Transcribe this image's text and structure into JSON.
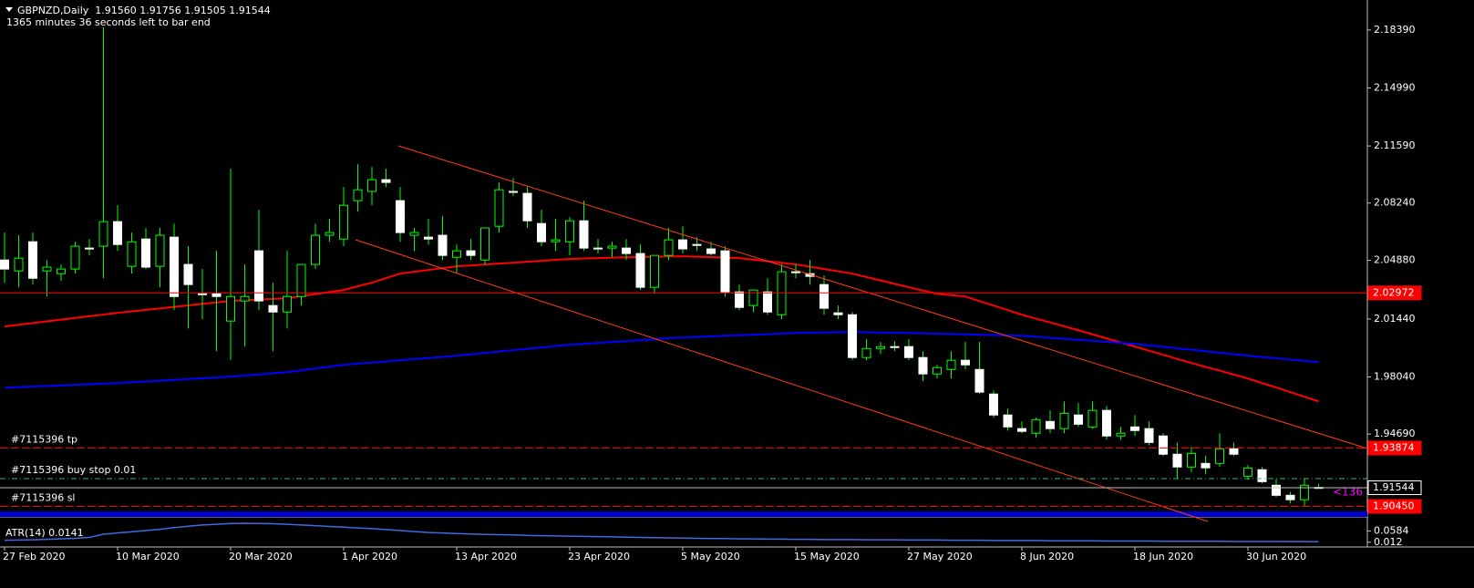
{
  "chart_data": [
    {
      "type": "candlestick",
      "title": "GBPNZD,Daily  1.91560 1.91756 1.91505 1.91544",
      "subtitle": "1365 minutes 36 seconds left to bar end",
      "countdown_tag": "<136",
      "categories": [
        "27 Feb 2020",
        null,
        null,
        null,
        null,
        null,
        null,
        null,
        "10 Mar 2020",
        null,
        null,
        null,
        null,
        null,
        null,
        null,
        "20 Mar 2020",
        null,
        null,
        null,
        null,
        null,
        null,
        null,
        "1 Apr 2020",
        null,
        null,
        null,
        null,
        null,
        null,
        null,
        "13 Apr 2020",
        null,
        null,
        null,
        null,
        null,
        null,
        null,
        "23 Apr 2020",
        null,
        null,
        null,
        null,
        null,
        null,
        null,
        "5 May 2020",
        null,
        null,
        null,
        null,
        null,
        null,
        null,
        "15 May 2020",
        null,
        null,
        null,
        null,
        null,
        null,
        null,
        "27 May 2020",
        null,
        null,
        null,
        null,
        null,
        null,
        null,
        "8 Jun 2020",
        null,
        null,
        null,
        null,
        null,
        null,
        null,
        "18 Jun 2020",
        null,
        null,
        null,
        null,
        null,
        null,
        null,
        "30 Jun 2020",
        null,
        null,
        null,
        null,
        null
      ],
      "open": [
        2.049,
        2.0426,
        2.0597,
        2.0426,
        2.041,
        2.0437,
        2.056,
        2.0571,
        2.0715,
        2.0453,
        2.0613,
        2.0453,
        2.0624,
        2.0464,
        2.0292,
        2.0292,
        2.0132,
        2.025,
        2.0544,
        2.0223,
        2.0185,
        2.0276,
        2.0464,
        2.0635,
        2.0613,
        2.0838,
        2.0892,
        2.0961,
        2.0838,
        2.0635,
        2.0624,
        2.0635,
        2.0506,
        2.0544,
        2.049,
        2.0688,
        2.0892,
        2.0881,
        2.0704,
        2.0597,
        2.0597,
        2.072,
        2.056,
        2.056,
        2.056,
        2.0528,
        2.033,
        2.0517,
        2.0608,
        2.0581,
        2.0555,
        2.0544,
        2.0303,
        2.0223,
        2.0303,
        2.0169,
        2.0421,
        2.041,
        2.0346,
        2.018,
        2.0169,
        1.9918,
        1.9971,
        1.9982,
        1.9982,
        1.9918,
        1.9822,
        1.9848,
        1.9902,
        1.9848,
        1.9704,
        1.9581,
        1.9501,
        1.9474,
        1.9543,
        1.9501,
        1.9581,
        1.9511,
        1.9608,
        1.9458,
        1.9511,
        1.9501,
        1.9458,
        1.9351,
        1.9276,
        1.9297,
        1.9297,
        1.9383,
        1.9222,
        1.926,
        1.9169,
        1.911,
        1.9084,
        1.9156
      ],
      "high": [
        2.0651,
        2.0635,
        2.0651,
        2.049,
        2.0464,
        2.0597,
        2.0613,
        2.1855,
        2.0811,
        2.0651,
        2.0678,
        2.0678,
        2.0704,
        2.0571,
        2.0437,
        2.0544,
        2.1025,
        2.0464,
        2.0785,
        2.0357,
        2.0544,
        2.0464,
        2.0704,
        2.0731,
        2.0918,
        2.1052,
        2.1036,
        2.1025,
        2.0918,
        2.0678,
        2.0731,
        2.0747,
        2.0581,
        2.0613,
        2.0678,
        2.0945,
        2.0972,
        2.0918,
        2.0785,
        2.0731,
        2.0742,
        2.0838,
        2.0613,
        2.0597,
        2.0613,
        2.0581,
        2.0517,
        2.0678,
        2.0688,
        2.0624,
        2.0597,
        2.0571,
        2.0346,
        2.0314,
        2.0383,
        2.0464,
        2.0464,
        2.049,
        2.0399,
        2.0223,
        2.0185,
        2.0025,
        2.0009,
        2.0014,
        2.0025,
        1.9955,
        1.9875,
        1.9955,
        2.0009,
        2.0009,
        1.9725,
        1.9618,
        1.9543,
        1.9565,
        1.9608,
        1.9661,
        1.965,
        1.9661,
        1.9634,
        1.9511,
        1.9581,
        1.9543,
        1.9474,
        1.942,
        1.9394,
        1.934,
        1.9474,
        1.942,
        1.9287,
        1.9276,
        1.9206,
        1.913,
        1.9206,
        1.91756
      ],
      "low": [
        2.0357,
        2.033,
        2.0346,
        2.0276,
        2.0367,
        2.041,
        2.0517,
        2.0383,
        2.0544,
        2.041,
        2.0437,
        2.033,
        2.0196,
        2.0089,
        2.0143,
        1.9955,
        1.9902,
        1.9982,
        2.0196,
        1.9955,
        2.0089,
        2.0223,
        2.0437,
        2.0597,
        2.0571,
        2.0774,
        2.0811,
        2.0918,
        2.0597,
        2.0544,
        2.0581,
        2.049,
        2.041,
        2.049,
        2.0464,
        2.0651,
        2.0865,
        2.0678,
        2.0571,
        2.0544,
        2.0517,
        2.0544,
        2.0528,
        2.0506,
        2.049,
        2.0314,
        2.0292,
        2.049,
        2.0528,
        2.0544,
        2.0517,
        2.0276,
        2.0196,
        2.0185,
        2.0169,
        2.0143,
        2.0383,
        2.0346,
        2.0169,
        2.0143,
        1.9902,
        1.9902,
        1.9939,
        1.9955,
        1.9902,
        1.9779,
        1.9795,
        1.9795,
        1.9848,
        1.9704,
        1.9565,
        1.949,
        1.9474,
        1.9447,
        1.9474,
        1.9474,
        1.9511,
        1.9501,
        1.9436,
        1.9436,
        1.9458,
        1.9404,
        1.934,
        1.9206,
        1.9244,
        1.9233,
        1.9276,
        1.934,
        1.92,
        1.918,
        1.91,
        1.9062,
        1.9046,
        1.91505
      ],
      "close": [
        2.0437,
        2.0501,
        2.0383,
        2.0448,
        2.0437,
        2.0571,
        2.0555,
        2.0715,
        2.0581,
        2.0597,
        2.0448,
        2.0635,
        2.0276,
        2.0346,
        2.0287,
        2.0276,
        2.0276,
        2.0276,
        2.025,
        2.0185,
        2.0276,
        2.0464,
        2.0635,
        2.0651,
        2.0811,
        2.0902,
        2.0961,
        2.0945,
        2.0651,
        2.0651,
        2.0613,
        2.0517,
        2.0544,
        2.0517,
        2.0678,
        2.0902,
        2.0887,
        2.072,
        2.0597,
        2.0608,
        2.072,
        2.056,
        2.0555,
        2.0571,
        2.0528,
        2.033,
        2.0517,
        2.0608,
        2.0555,
        2.0576,
        2.0528,
        2.0303,
        2.0212,
        2.0314,
        2.0185,
        2.0421,
        2.0416,
        2.0394,
        2.0207,
        2.0169,
        1.9918,
        1.9971,
        1.9982,
        1.9977,
        1.9918,
        1.9822,
        1.9859,
        1.9902,
        1.9875,
        1.9715,
        1.9581,
        1.9511,
        1.9485,
        1.9554,
        1.9501,
        1.9591,
        1.9527,
        1.9608,
        1.9458,
        1.9474,
        1.949,
        1.942,
        1.9351,
        1.9276,
        1.9356,
        1.9271,
        1.9383,
        1.9351,
        1.927,
        1.919,
        1.911,
        1.9084,
        1.9169,
        1.91544
      ],
      "up_color": "#000000",
      "down_color": "#ffffff",
      "wick_color": "#00ff00",
      "series": [
        {
          "color": "#ff0000",
          "values": [
            2.01,
            2.011,
            2.012,
            2.013,
            2.014,
            2.015,
            2.016,
            2.017,
            2.018,
            2.0189,
            2.0198,
            2.0206,
            2.0215,
            2.0224,
            2.0233,
            2.0241,
            2.025,
            2.0254,
            2.0258,
            2.0262,
            2.0266,
            2.0278,
            2.029,
            2.0302,
            2.0314,
            2.0336,
            2.0357,
            2.0384,
            2.041,
            2.0421,
            2.0432,
            2.0442,
            2.0453,
            2.0458,
            2.0464,
            2.0469,
            2.0474,
            2.048,
            2.0485,
            2.0491,
            2.0496,
            2.0499,
            2.0501,
            2.0504,
            2.0506,
            2.0508,
            2.0509,
            2.0511,
            2.0512,
            2.0509,
            2.0507,
            2.0504,
            2.0501,
            2.0492,
            2.0483,
            2.0473,
            2.0464,
            2.0451,
            2.0437,
            2.0424,
            2.041,
            2.039,
            2.037,
            2.035,
            2.033,
            2.0311,
            2.0292,
            2.0284,
            2.0276,
            2.0249,
            2.0223,
            2.0196,
            2.0169,
            2.0146,
            2.0124,
            2.0101,
            2.0078,
            2.0054,
            2.003,
            2.0006,
            1.9982,
            1.9958,
            1.9934,
            1.991,
            1.9886,
            1.9863,
            1.9841,
            1.9818,
            1.9795,
            1.9768,
            1.9742,
            1.9715,
            1.9688,
            1.9661
          ]
        },
        {
          "color": "#0000ff",
          "values": [
            1.9741,
            1.9744,
            1.9748,
            1.9751,
            1.9754,
            1.9758,
            1.9761,
            1.9765,
            1.9768,
            1.9773,
            1.9777,
            1.9782,
            1.9787,
            1.9792,
            1.9796,
            1.9801,
            1.9806,
            1.9813,
            1.9819,
            1.9826,
            1.9832,
            1.9843,
            1.9854,
            1.9864,
            1.9875,
            1.9882,
            1.9888,
            1.9895,
            1.9902,
            1.9909,
            1.9915,
            1.9922,
            1.9929,
            1.9937,
            1.9945,
            1.9953,
            1.9961,
            1.9969,
            1.9977,
            1.9985,
            1.9993,
            1.9998,
            2.0004,
            2.0009,
            2.0014,
            2.002,
            2.0025,
            2.0031,
            2.0036,
            2.0039,
            2.0042,
            2.0046,
            2.0049,
            2.0052,
            2.0055,
            2.0059,
            2.0062,
            2.0064,
            2.0065,
            2.0067,
            2.0068,
            2.0066,
            2.0065,
            2.0063,
            2.0062,
            2.006,
            2.0058,
            2.0056,
            2.0054,
            2.0052,
            2.005,
            2.0048,
            2.0046,
            2.004,
            2.0034,
            2.0028,
            2.0022,
            2.0016,
            2.001,
            2.0004,
            1.9998,
            1.9989,
            1.9981,
            1.9972,
            1.9964,
            1.9955,
            1.9946,
            1.9938,
            1.9929,
            1.9921,
            1.9914,
            1.9906,
            1.9899,
            1.9891
          ]
        }
      ],
      "levels": [
        {
          "value": 2.02972,
          "label": "2.02972",
          "color": "#ff0000",
          "dashed": false,
          "box": "#ff0000"
        },
        {
          "name": "#7115396 tp",
          "value": 1.93874,
          "label": "1.93874",
          "color": "#ff0000",
          "dashed": true,
          "box": "#ff0000"
        },
        {
          "name": "#7115396 buy stop 0.01",
          "value": 1.9208,
          "color": "#3cb371",
          "dashed": true
        },
        {
          "value": 1.91544,
          "label": "1.91544",
          "color": "#c0c0c0",
          "dashed": false,
          "box": "#000000"
        },
        {
          "name": "#7115396 sl",
          "value": 1.9045,
          "label": "1.90450",
          "color": "#ff0000",
          "dashed": true,
          "box": "#ff0000"
        }
      ],
      "ylim": [
        1.8994,
        2.2015
      ],
      "yticks": [
        {
          "value": 2.1839,
          "label": "2.18390"
        },
        {
          "value": 2.1499,
          "label": "2.14990"
        },
        {
          "value": 2.1159,
          "label": "2.11590"
        },
        {
          "value": 2.0824,
          "label": "2.08240"
        },
        {
          "value": 2.0488,
          "label": "2.04880"
        },
        {
          "value": 2.0144,
          "label": "2.01440"
        },
        {
          "value": 1.9804,
          "label": "1.98040"
        },
        {
          "value": 1.9469,
          "label": "1.94690"
        }
      ]
    },
    {
      "type": "line",
      "title": "ATR(14) 0.0141",
      "color": "#4169e1",
      "values": [
        0.02,
        0.021,
        0.022,
        0.024,
        0.026,
        0.028,
        0.032,
        0.045,
        0.05,
        0.055,
        0.06,
        0.065,
        0.072,
        0.078,
        0.083,
        0.086,
        0.089,
        0.09,
        0.089,
        0.088,
        0.086,
        0.083,
        0.08,
        0.077,
        0.074,
        0.071,
        0.068,
        0.064,
        0.06,
        0.056,
        0.052,
        0.05,
        0.048,
        0.046,
        0.044,
        0.043,
        0.042,
        0.04,
        0.039,
        0.038,
        0.037,
        0.036,
        0.035,
        0.034,
        0.033,
        0.032,
        0.031,
        0.03,
        0.029,
        0.028,
        0.027,
        0.027,
        0.026,
        0.026,
        0.025,
        0.025,
        0.024,
        0.024,
        0.023,
        0.023,
        0.023,
        0.022,
        0.022,
        0.022,
        0.021,
        0.021,
        0.021,
        0.02,
        0.02,
        0.02,
        0.019,
        0.019,
        0.019,
        0.019,
        0.018,
        0.018,
        0.018,
        0.018,
        0.017,
        0.017,
        0.017,
        0.017,
        0.016,
        0.016,
        0.016,
        0.016,
        0.016,
        0.015,
        0.015,
        0.015,
        0.015,
        0.0145,
        0.0143,
        0.0141
      ],
      "ylim": [
        0,
        0.105
      ],
      "yticks": [
        0.0584,
        0.012
      ]
    }
  ]
}
